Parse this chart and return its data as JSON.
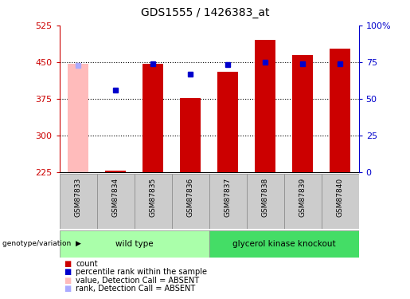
{
  "title": "GDS1555 / 1426383_at",
  "samples": [
    "GSM87833",
    "GSM87834",
    "GSM87835",
    "GSM87836",
    "GSM87837",
    "GSM87838",
    "GSM87839",
    "GSM87840"
  ],
  "bar_values": [
    447,
    228,
    447,
    376,
    430,
    496,
    465,
    478
  ],
  "bar_absent": [
    true,
    false,
    false,
    false,
    false,
    false,
    false,
    false
  ],
  "rank_values": [
    443,
    393,
    446,
    425,
    445,
    450,
    447,
    446
  ],
  "rank_absent": [
    true,
    false,
    false,
    false,
    false,
    false,
    false,
    false
  ],
  "ymin": 225,
  "ymax": 525,
  "yticks_left": [
    225,
    300,
    375,
    450,
    525
  ],
  "yticks_right": [
    0,
    25,
    50,
    75,
    100
  ],
  "ytick_right_labels": [
    "0",
    "25",
    "50",
    "75",
    "100%"
  ],
  "dotted_lines": [
    300,
    375,
    450
  ],
  "groups": [
    {
      "label": "wild type",
      "start": 0,
      "end": 3,
      "color": "#aaffaa"
    },
    {
      "label": "glycerol kinase knockout",
      "start": 4,
      "end": 7,
      "color": "#44dd66"
    }
  ],
  "group_label_text": "genotype/variation",
  "bar_color_normal": "#cc0000",
  "bar_color_absent": "#ffbbbb",
  "rank_color_normal": "#0000cc",
  "rank_color_absent": "#aaaaff",
  "left_tick_color": "#cc0000",
  "right_tick_color": "#0000cc",
  "legend": [
    {
      "color": "#cc0000",
      "label": "count"
    },
    {
      "color": "#0000cc",
      "label": "percentile rank within the sample"
    },
    {
      "color": "#ffbbbb",
      "label": "value, Detection Call = ABSENT"
    },
    {
      "color": "#aaaaff",
      "label": "rank, Detection Call = ABSENT"
    }
  ]
}
